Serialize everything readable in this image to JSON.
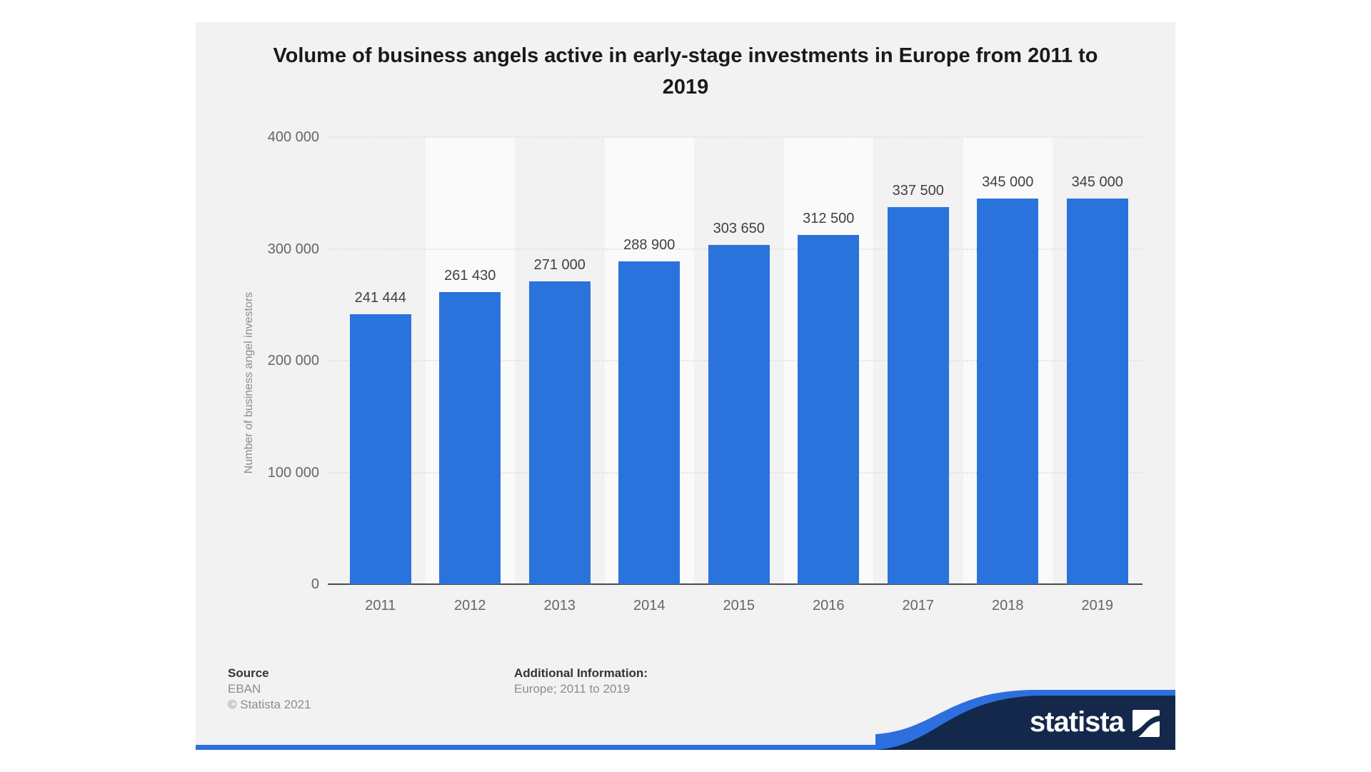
{
  "title": {
    "text": "Volume of business angels active in early-stage investments in Europe from 2011 to 2019",
    "lines": [
      "Volume of business angels active in early-stage investments in Europe from 2011 to",
      "2019"
    ]
  },
  "chart_data": {
    "type": "bar",
    "title": "Volume of business angels active in early-stage investments in Europe from 2011 to 2019",
    "categories": [
      "2011",
      "2012",
      "2013",
      "2014",
      "2015",
      "2016",
      "2017",
      "2018",
      "2019"
    ],
    "values": [
      241444,
      261430,
      271000,
      288900,
      303650,
      312500,
      337500,
      345000,
      345000
    ],
    "value_labels": [
      "241 444",
      "261 430",
      "271 000",
      "288 900",
      "303 650",
      "312 500",
      "337 500",
      "345 000",
      "345 000"
    ],
    "xlabel": "",
    "ylabel": "Number of business angel investors",
    "ylim": [
      0,
      400000
    ],
    "ytick_labels": [
      "400 000",
      "300 000",
      "200 000",
      "100 000",
      "0"
    ],
    "grid": "horizontal-dotted",
    "legend": "none",
    "bar_color": "#2a73dc"
  },
  "footer": {
    "source_label": "Source",
    "source_value": "EBAN",
    "copyright": "© Statista 2021",
    "additional_label": "Additional Information:",
    "additional_value": "Europe; 2011 to 2019"
  },
  "branding": {
    "logo_text": "statista",
    "banner_navy": "#13284a",
    "banner_blue": "#2d6fdf"
  }
}
